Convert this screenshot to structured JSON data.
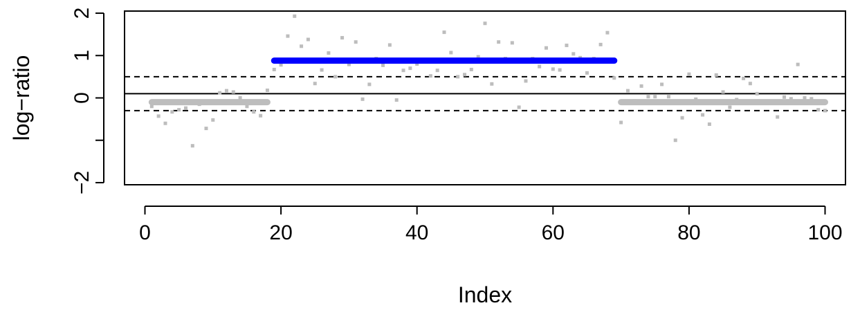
{
  "chart_data": {
    "type": "scatter",
    "title": "",
    "xlabel": "Index",
    "ylabel": "log−ratio",
    "xlim": [
      -3,
      103
    ],
    "ylim": [
      -2.05,
      2.05
    ],
    "x_ticks": [
      0,
      20,
      40,
      60,
      80,
      100
    ],
    "x_tick_labels": [
      "0",
      "20",
      "40",
      "60",
      "80",
      "100"
    ],
    "y_ticks": [
      -2,
      -1,
      0,
      1,
      2
    ],
    "y_tick_labels": [
      "−2",
      "",
      "0",
      "1",
      "2"
    ],
    "grid": false,
    "legend": "none",
    "points": {
      "color": "#bdbdbd",
      "x": [
        1,
        2,
        3,
        4,
        5,
        6,
        7,
        8,
        9,
        10,
        11,
        12,
        13,
        14,
        15,
        16,
        17,
        18,
        19,
        20,
        21,
        22,
        23,
        24,
        25,
        26,
        27,
        28,
        29,
        30,
        31,
        32,
        33,
        34,
        35,
        36,
        37,
        38,
        39,
        40,
        41,
        42,
        43,
        44,
        45,
        46,
        47,
        48,
        49,
        50,
        51,
        52,
        53,
        54,
        55,
        56,
        57,
        58,
        59,
        60,
        61,
        62,
        63,
        64,
        65,
        66,
        67,
        68,
        69,
        70,
        71,
        72,
        73,
        74,
        75,
        76,
        77,
        78,
        79,
        80,
        81,
        82,
        83,
        84,
        85,
        86,
        87,
        88,
        89,
        90,
        91,
        92,
        93,
        94,
        95,
        96,
        97,
        98,
        99,
        100
      ],
      "y": [
        -0.2,
        -0.43,
        -0.6,
        -0.33,
        -0.28,
        -0.24,
        -1.13,
        -0.15,
        -0.72,
        -0.52,
        0.12,
        0.17,
        0.14,
        0.0,
        -0.2,
        -0.33,
        -0.42,
        0.18,
        0.67,
        0.78,
        1.46,
        1.93,
        1.22,
        1.38,
        0.34,
        0.66,
        1.06,
        0.5,
        1.42,
        0.79,
        1.32,
        -0.03,
        0.32,
        0.93,
        0.77,
        1.25,
        -0.05,
        0.65,
        0.7,
        0.8,
        0.9,
        0.52,
        0.65,
        1.55,
        1.07,
        0.5,
        0.55,
        0.67,
        0.97,
        1.76,
        0.33,
        1.32,
        0.93,
        1.3,
        -0.22,
        0.4,
        0.93,
        0.74,
        1.18,
        0.68,
        0.66,
        1.24,
        1.04,
        0.95,
        0.59,
        0.93,
        1.26,
        1.54,
        0.47,
        -0.58,
        0.17,
        -0.07,
        0.28,
        0.03,
        0.03,
        0.32,
        0.03,
        -1.0,
        -0.47,
        0.56,
        -0.03,
        -0.4,
        -0.62,
        0.54,
        0.14,
        -0.22,
        -0.04,
        0.46,
        0.34,
        0.1,
        -0.1,
        -0.1,
        -0.45,
        0.02,
        -0.02,
        0.79,
        0.0,
        -0.02,
        -0.28,
        -0.3
      ]
    },
    "segments": [
      {
        "x_start": 1,
        "x_end": 18,
        "value": -0.1,
        "color": "#bdbdbd"
      },
      {
        "x_start": 19,
        "x_end": 69,
        "value": 0.88,
        "color": "#0000ff"
      },
      {
        "x_start": 70,
        "x_end": 100,
        "value": -0.1,
        "color": "#bdbdbd"
      }
    ],
    "reference_lines": [
      {
        "value": 0.1,
        "style": "solid",
        "color": "#000000"
      },
      {
        "value": 0.5,
        "style": "dashed",
        "color": "#000000"
      },
      {
        "value": -0.3,
        "style": "dashed",
        "color": "#000000"
      }
    ]
  }
}
